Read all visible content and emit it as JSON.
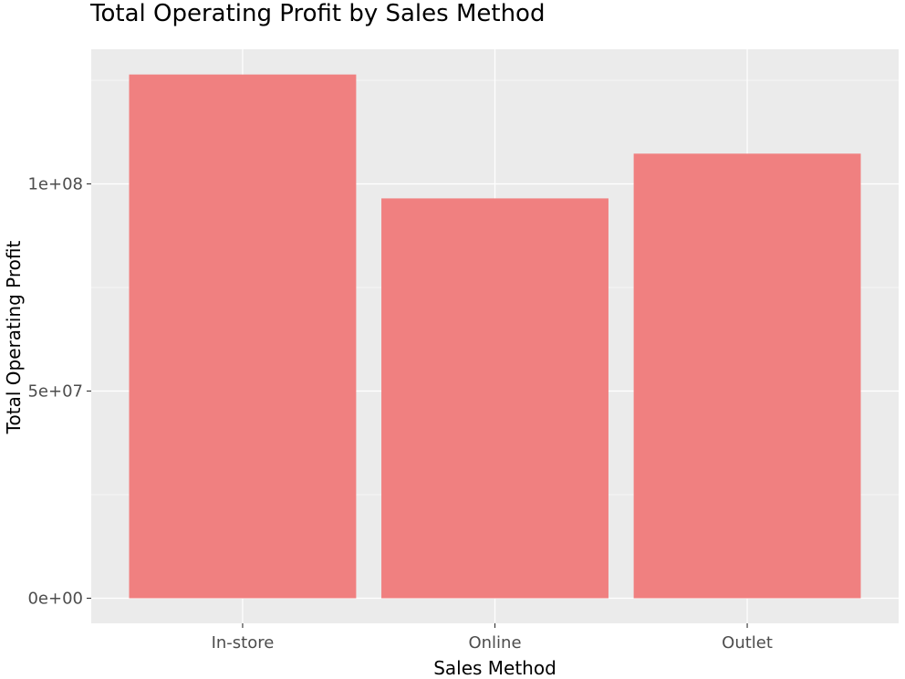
{
  "chart_data": {
    "type": "bar",
    "title": "Total Operating Profit by Sales Method",
    "xlabel": "Sales Method",
    "ylabel": "Total Operating Profit",
    "categories": [
      "In-store",
      "Online",
      "Outlet"
    ],
    "values": [
      126400000,
      96500000,
      107300000
    ],
    "ylim": [
      0,
      132000000
    ],
    "yticks": [
      0,
      50000000,
      100000000
    ],
    "ytick_labels": [
      "0e+00",
      "5e+07",
      "1e+08"
    ],
    "grid": true,
    "bar_color": "#F08080",
    "panel_color": "#EBEBEB",
    "grid_color": "#FFFFFF"
  }
}
